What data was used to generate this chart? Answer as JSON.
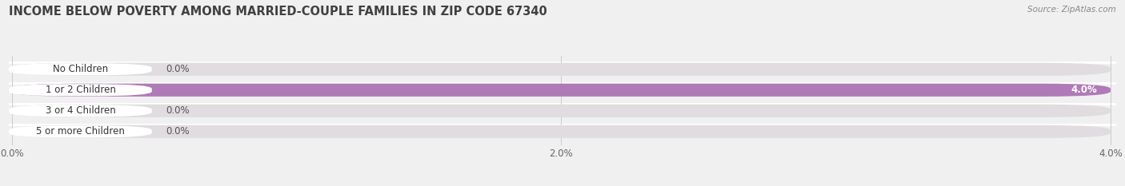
{
  "title": "INCOME BELOW POVERTY AMONG MARRIED-COUPLE FAMILIES IN ZIP CODE 67340",
  "source": "Source: ZipAtlas.com",
  "categories": [
    "No Children",
    "1 or 2 Children",
    "3 or 4 Children",
    "5 or more Children"
  ],
  "values": [
    0.0,
    4.0,
    0.0,
    0.0
  ],
  "bar_colors": [
    "#a8b8d8",
    "#b07ab8",
    "#50c0b8",
    "#a0a8d8"
  ],
  "background_color": "#f0f0f0",
  "bar_bg_color": "#e0dce0",
  "bar_separator_color": "#ffffff",
  "xlim_max": 4.0,
  "xticks": [
    0.0,
    2.0,
    4.0
  ],
  "xtick_labels": [
    "0.0%",
    "2.0%",
    "4.0%"
  ],
  "title_fontsize": 10.5,
  "label_fontsize": 8.5,
  "value_fontsize": 8.5,
  "bar_height": 0.62
}
